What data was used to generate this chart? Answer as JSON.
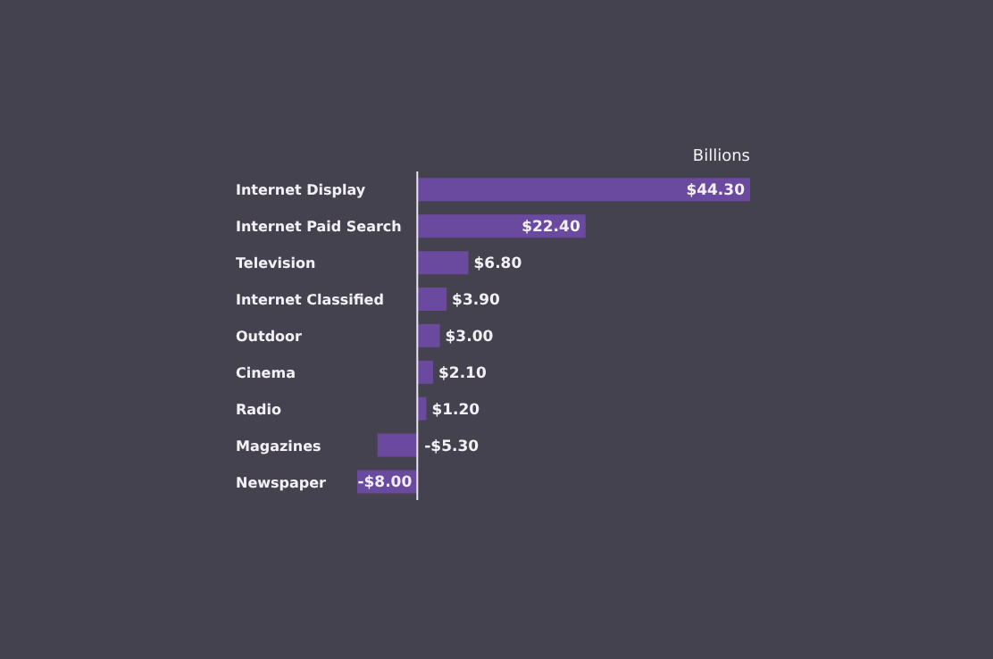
{
  "chart_data": {
    "type": "bar",
    "orientation": "horizontal",
    "categories": [
      "Internet Display",
      "Internet Paid Search",
      "Television",
      "Internet Classified",
      "Outdoor",
      "Cinema",
      "Radio",
      "Magazines",
      "Newspaper"
    ],
    "values": [
      44.3,
      22.4,
      6.8,
      3.9,
      3.0,
      2.1,
      1.2,
      -5.3,
      -8.0
    ],
    "value_labels": [
      "$44.30",
      "$22.40",
      "$6.80",
      "$3.90",
      "$3.00",
      "$2.10",
      "$1.20",
      "-$5.30",
      "-$8.00"
    ],
    "color": "#6a4a9e",
    "annotations": [
      "Billions"
    ]
  }
}
